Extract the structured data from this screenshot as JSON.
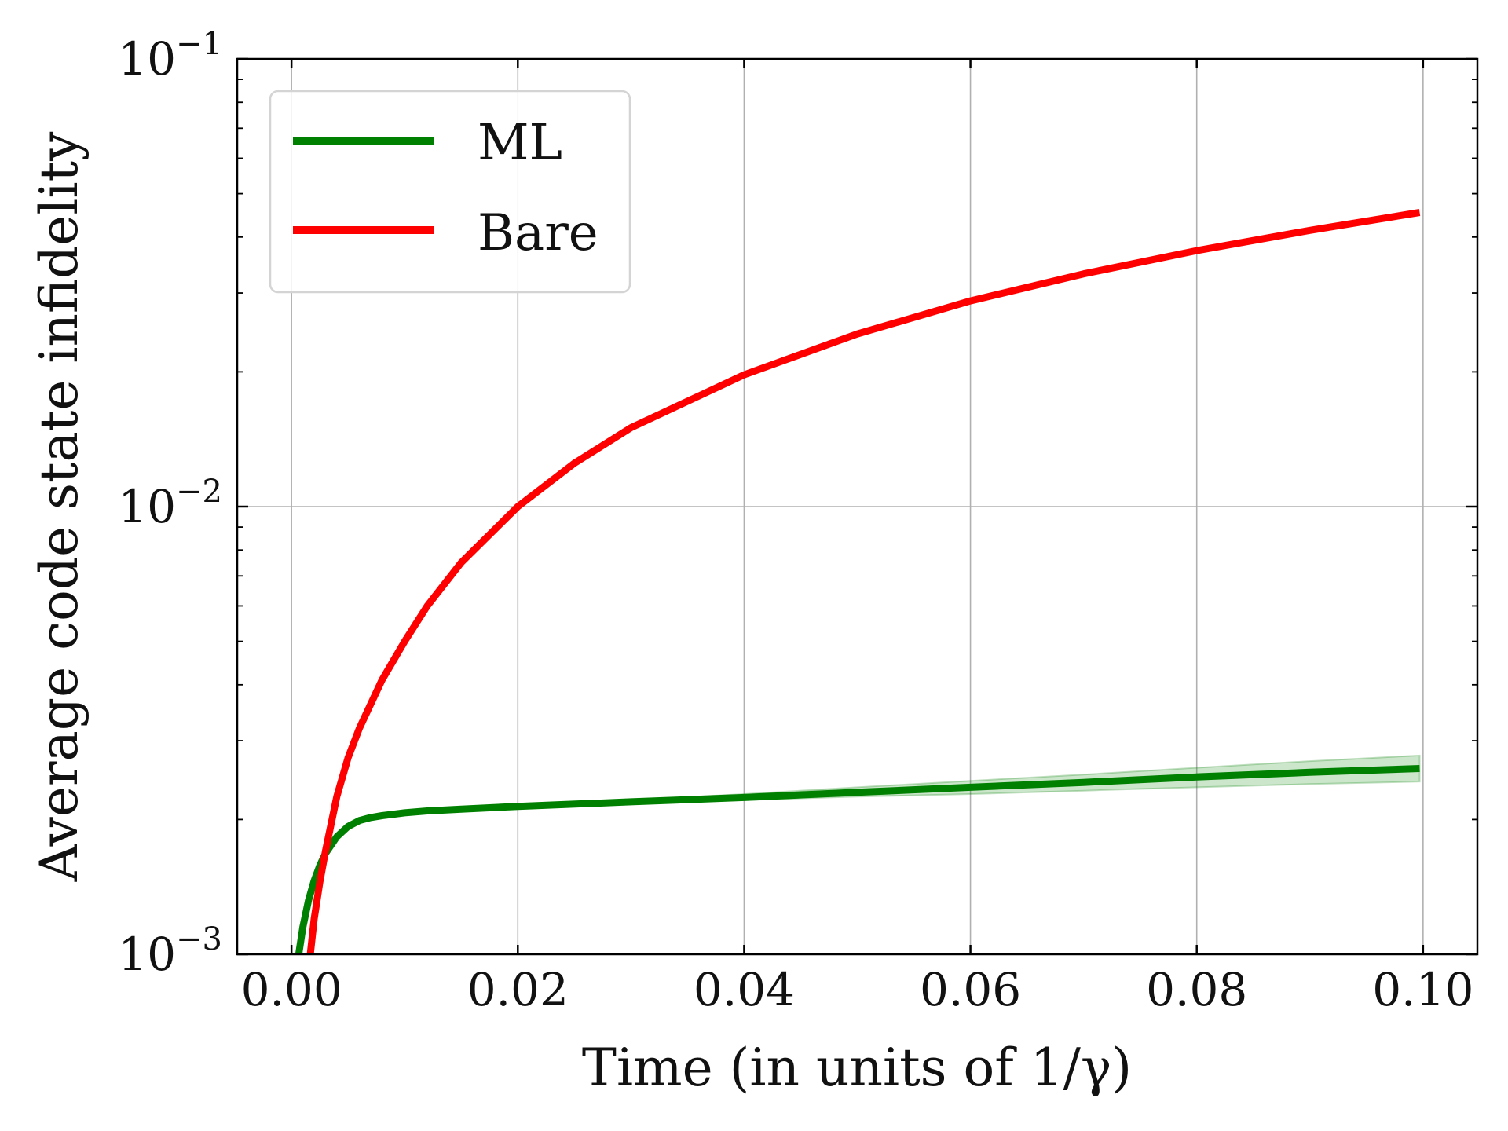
{
  "chart_data": {
    "type": "line",
    "xlabel": "Time (in units of 1/γ)",
    "ylabel": "Average code state infidelity",
    "xlim": [
      -0.0048,
      0.1048
    ],
    "ylim": [
      0.001,
      0.1
    ],
    "yscale": "log",
    "grid": true,
    "legend_position": "top-left",
    "x_ticks": [
      {
        "value": 0.0,
        "label": "0.00"
      },
      {
        "value": 0.02,
        "label": "0.02"
      },
      {
        "value": 0.04,
        "label": "0.04"
      },
      {
        "value": 0.06,
        "label": "0.06"
      },
      {
        "value": 0.08,
        "label": "0.08"
      },
      {
        "value": 0.1,
        "label": "0.10"
      }
    ],
    "y_ticks": [
      {
        "value": 0.001,
        "base": "10",
        "exp": "−3"
      },
      {
        "value": 0.01,
        "base": "10",
        "exp": "−2"
      },
      {
        "value": 0.1,
        "base": "10",
        "exp": "−1"
      }
    ],
    "series": [
      {
        "name": "ML",
        "color": "#008000",
        "x": [
          0.0005,
          0.001,
          0.0015,
          0.002,
          0.0025,
          0.003,
          0.004,
          0.005,
          0.006,
          0.007,
          0.008,
          0.01,
          0.012,
          0.015,
          0.02,
          0.03,
          0.04,
          0.05,
          0.06,
          0.07,
          0.08,
          0.09,
          0.0997
        ],
        "y": [
          0.00095,
          0.00115,
          0.00132,
          0.00146,
          0.00158,
          0.00168,
          0.00183,
          0.00193,
          0.00199,
          0.00202,
          0.00204,
          0.00207,
          0.00209,
          0.00211,
          0.00214,
          0.00219,
          0.00224,
          0.0023,
          0.00236,
          0.00242,
          0.00249,
          0.00255,
          0.0026
        ],
        "band_upper": [
          0.00095,
          0.00115,
          0.00132,
          0.00146,
          0.00158,
          0.00168,
          0.00183,
          0.00193,
          0.00199,
          0.00202,
          0.00204,
          0.00207,
          0.00209,
          0.00212,
          0.00215,
          0.00221,
          0.00228,
          0.00236,
          0.00244,
          0.00252,
          0.00261,
          0.0027,
          0.00278
        ],
        "band_lower": [
          0.00095,
          0.00115,
          0.00132,
          0.00146,
          0.00158,
          0.00168,
          0.00183,
          0.00193,
          0.00199,
          0.00202,
          0.00204,
          0.00207,
          0.00209,
          0.0021,
          0.00213,
          0.00217,
          0.00221,
          0.00225,
          0.00228,
          0.00232,
          0.00236,
          0.0024,
          0.00243
        ]
      },
      {
        "name": "Bare",
        "color": "#ff0000",
        "x": [
          0.0015,
          0.002,
          0.0025,
          0.003,
          0.004,
          0.005,
          0.006,
          0.008,
          0.01,
          0.012,
          0.015,
          0.02,
          0.025,
          0.03,
          0.04,
          0.05,
          0.06,
          0.07,
          0.08,
          0.09,
          0.0997
        ],
        "y": [
          0.00092,
          0.0012,
          0.00145,
          0.0017,
          0.00225,
          0.00275,
          0.0032,
          0.0041,
          0.005,
          0.006,
          0.0075,
          0.01,
          0.0125,
          0.015,
          0.0197,
          0.0243,
          0.0288,
          0.0331,
          0.0373,
          0.0414,
          0.0454
        ]
      }
    ]
  }
}
